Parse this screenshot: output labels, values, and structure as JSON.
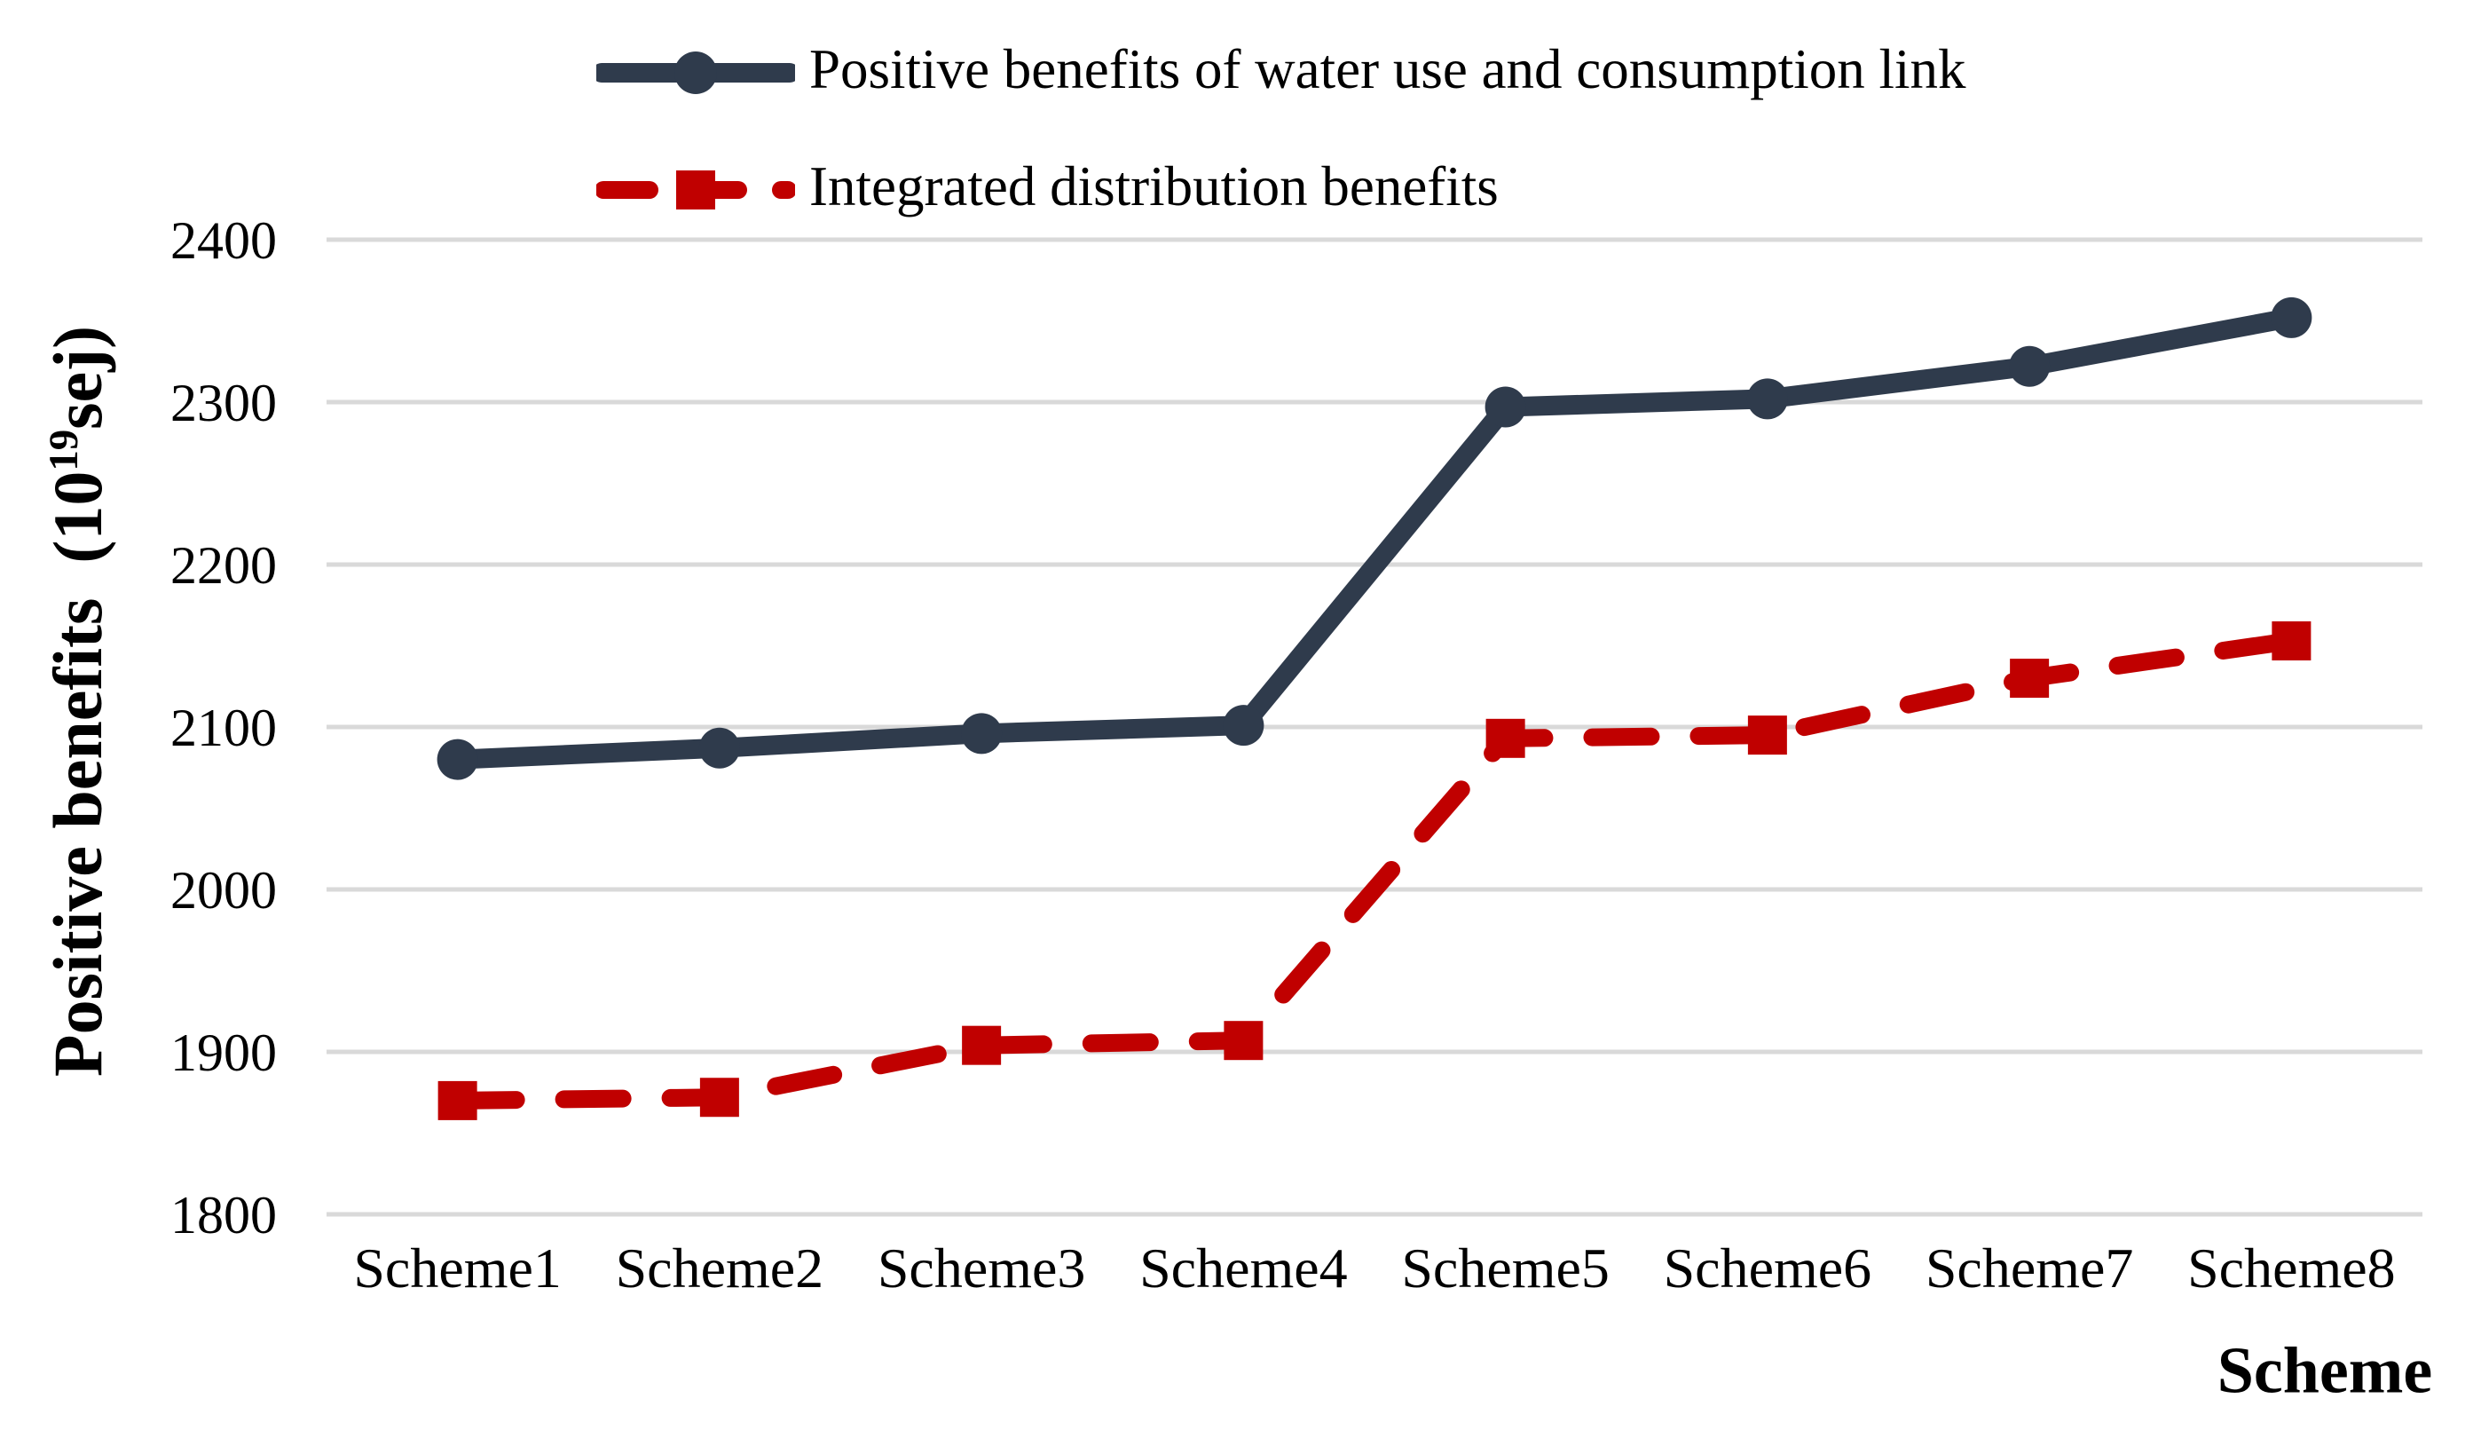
{
  "colors": {
    "navy": "#2F3B4C",
    "red": "#C00000",
    "gridline": "#D9D9D9",
    "text": "#000000",
    "background": "#FFFFFF"
  },
  "legend": {
    "items": [
      {
        "label": "Positive benefits of water use and consumption link",
        "marker": "circle-on-solid-line",
        "color": "#2F3B4C"
      },
      {
        "label": "Integrated distribution benefits",
        "marker": "square-on-dashed-line",
        "color": "#C00000"
      }
    ]
  },
  "y_axis": {
    "title_part1": "Positive benefits  (10",
    "title_sup": "19",
    "title_part2": "sej)"
  },
  "x_axis": {
    "title": "Scheme"
  },
  "chart_data": {
    "type": "line",
    "categories": [
      "Scheme1",
      "Scheme2",
      "Scheme3",
      "Scheme4",
      "Scheme5",
      "Scheme6",
      "Scheme7",
      "Scheme8"
    ],
    "series": [
      {
        "name": "Positive benefits of water use and consumption link",
        "color": "#2F3B4C",
        "marker": "circle",
        "line_style": "solid",
        "values": [
          2080,
          2087,
          2096,
          2101,
          2297,
          2302,
          2322,
          2352
        ]
      },
      {
        "name": "Integrated distribution benefits",
        "color": "#C00000",
        "marker": "square",
        "line_style": "dashed",
        "values": [
          1870,
          1872,
          1904,
          1907,
          2093,
          2095,
          2130,
          2153
        ]
      }
    ],
    "title": "",
    "xlabel": "Scheme",
    "ylabel": "Positive benefits (10^19 sej)",
    "ylim": [
      1800,
      2400
    ],
    "yticks": [
      1800,
      1900,
      2000,
      2100,
      2200,
      2300,
      2400
    ],
    "grid": "horizontal",
    "legend_position": "top-left"
  }
}
